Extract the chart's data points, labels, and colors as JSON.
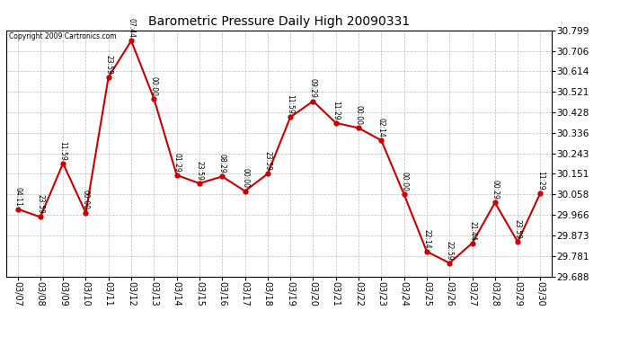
{
  "title": "Barometric Pressure Daily High 20090331",
  "copyright": "Copyright 2009 Cartronics.com",
  "x_labels": [
    "03/07",
    "03/08",
    "03/09",
    "03/10",
    "03/11",
    "03/12",
    "03/13",
    "03/14",
    "03/15",
    "03/16",
    "03/17",
    "03/18",
    "03/19",
    "03/20",
    "03/21",
    "03/22",
    "03/23",
    "03/24",
    "03/25",
    "03/26",
    "03/27",
    "03/28",
    "03/29",
    "03/30"
  ],
  "y_values": [
    29.992,
    29.956,
    30.198,
    29.975,
    30.588,
    30.752,
    30.49,
    30.145,
    30.108,
    30.139,
    30.073,
    30.151,
    30.407,
    30.479,
    30.381,
    30.358,
    30.302,
    30.058,
    29.8,
    29.748,
    29.838,
    30.021,
    29.844,
    30.065
  ],
  "annotations": [
    "04:11",
    "23:59",
    "11:59",
    "00:00",
    "23:59",
    "07:44",
    "00:00",
    "01:29",
    "23:59",
    "08:29",
    "00:00",
    "23:59",
    "11:59",
    "09:29",
    "11:29",
    "00:00",
    "02:14",
    "00:00",
    "22:14",
    "22:59",
    "21:44",
    "00:29",
    "23:59",
    "11:29"
  ],
  "line_color": "#cc0000",
  "marker_color": "#cc0000",
  "bg_color": "#ffffff",
  "grid_color": "#bbbbbb",
  "ylim_min": 29.688,
  "ylim_max": 30.799,
  "yticks": [
    29.688,
    29.781,
    29.873,
    29.966,
    30.058,
    30.151,
    30.243,
    30.336,
    30.428,
    30.521,
    30.614,
    30.706,
    30.799
  ]
}
